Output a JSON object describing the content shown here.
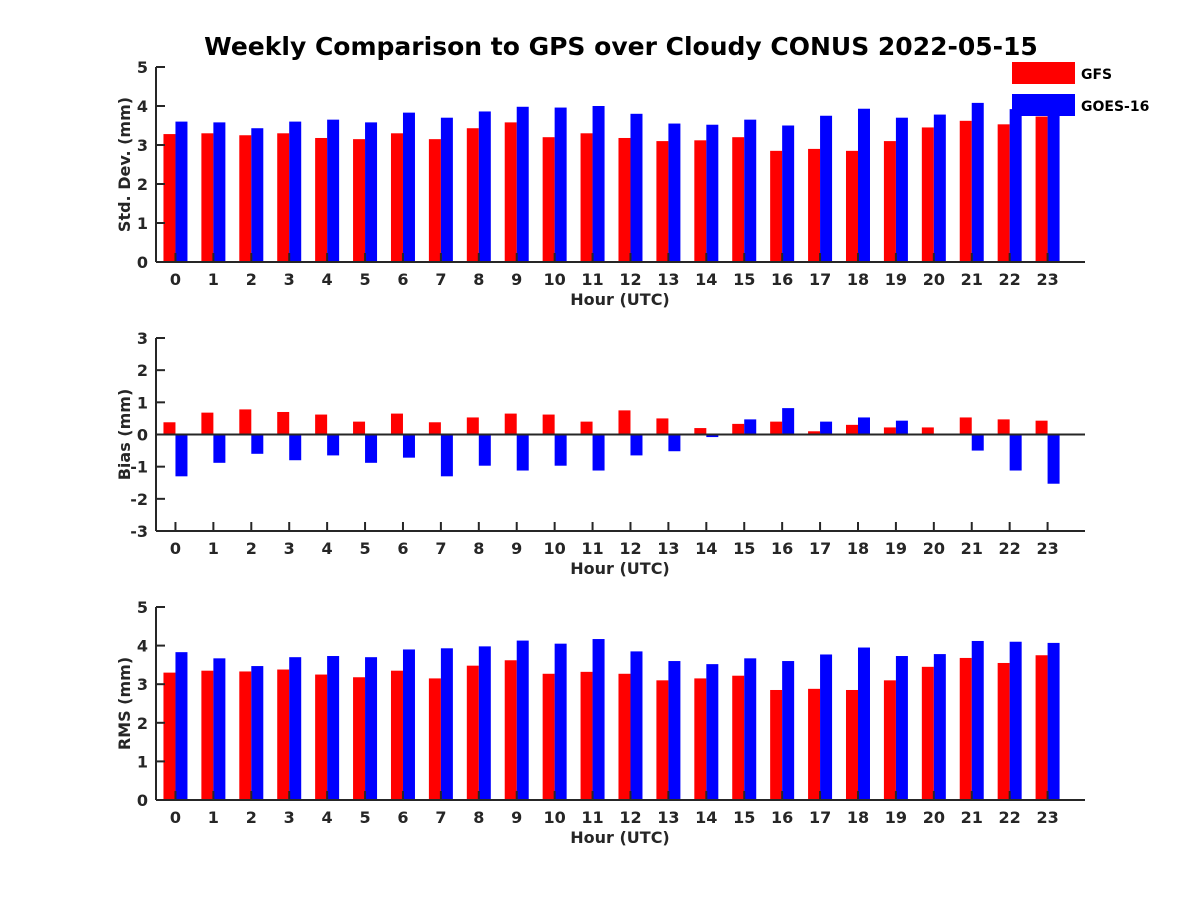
{
  "title": "Weekly Comparison to GPS over Cloudy CONUS 2022-05-15",
  "colors": {
    "GFS": "#ff0000",
    "GOES-16": "#0000ff",
    "axis": "#262626"
  },
  "legend": {
    "placement": "top-right",
    "entries": [
      "GFS",
      "GOES-16"
    ]
  },
  "chart_data": [
    {
      "type": "bar",
      "xlabel": "Hour (UTC)",
      "ylabel": "Std. Dev. (mm)",
      "ylim": [
        0,
        5
      ],
      "yticks": [
        0,
        1,
        2,
        3,
        4,
        5
      ],
      "grid": false,
      "categories": [
        "0",
        "1",
        "2",
        "3",
        "4",
        "5",
        "6",
        "7",
        "8",
        "9",
        "10",
        "11",
        "12",
        "13",
        "14",
        "15",
        "16",
        "17",
        "18",
        "19",
        "20",
        "21",
        "22",
        "23"
      ],
      "series": [
        {
          "name": "GFS",
          "values": [
            3.28,
            3.3,
            3.25,
            3.3,
            3.18,
            3.15,
            3.3,
            3.15,
            3.43,
            3.58,
            3.2,
            3.3,
            3.18,
            3.1,
            3.12,
            3.2,
            2.85,
            2.9,
            2.85,
            3.1,
            3.45,
            3.62,
            3.53,
            3.73
          ]
        },
        {
          "name": "GOES-16",
          "values": [
            3.6,
            3.58,
            3.43,
            3.6,
            3.65,
            3.58,
            3.83,
            3.7,
            3.86,
            3.98,
            3.96,
            4.0,
            3.8,
            3.55,
            3.52,
            3.65,
            3.5,
            3.75,
            3.93,
            3.7,
            3.78,
            4.08,
            3.92,
            3.9
          ]
        }
      ]
    },
    {
      "type": "bar",
      "xlabel": "Hour (UTC)",
      "ylabel": "Bias (mm)",
      "ylim": [
        -3,
        3
      ],
      "yticks": [
        -3,
        -2,
        -1,
        0,
        1,
        2,
        3
      ],
      "grid": false,
      "categories": [
        "0",
        "1",
        "2",
        "3",
        "4",
        "5",
        "6",
        "7",
        "8",
        "9",
        "10",
        "11",
        "12",
        "13",
        "14",
        "15",
        "16",
        "17",
        "18",
        "19",
        "20",
        "21",
        "22",
        "23"
      ],
      "series": [
        {
          "name": "GFS",
          "values": [
            0.38,
            0.68,
            0.78,
            0.7,
            0.62,
            0.4,
            0.65,
            0.38,
            0.53,
            0.65,
            0.62,
            0.4,
            0.75,
            0.5,
            0.2,
            0.33,
            0.4,
            0.1,
            0.3,
            0.22,
            0.22,
            0.53,
            0.47,
            0.43
          ]
        },
        {
          "name": "GOES-16",
          "values": [
            -1.3,
            -0.88,
            -0.6,
            -0.8,
            -0.65,
            -0.88,
            -0.72,
            -1.3,
            -0.97,
            -1.12,
            -0.97,
            -1.12,
            -0.65,
            -0.52,
            -0.08,
            0.47,
            0.82,
            0.4,
            0.53,
            0.43,
            0.03,
            -0.5,
            -1.12,
            -1.53
          ]
        }
      ]
    },
    {
      "type": "bar",
      "xlabel": "Hour (UTC)",
      "ylabel": "RMS (mm)",
      "ylim": [
        0,
        5
      ],
      "yticks": [
        0,
        1,
        2,
        3,
        4,
        5
      ],
      "grid": false,
      "categories": [
        "0",
        "1",
        "2",
        "3",
        "4",
        "5",
        "6",
        "7",
        "8",
        "9",
        "10",
        "11",
        "12",
        "13",
        "14",
        "15",
        "16",
        "17",
        "18",
        "19",
        "20",
        "21",
        "22",
        "23"
      ],
      "series": [
        {
          "name": "GFS",
          "values": [
            3.3,
            3.35,
            3.33,
            3.38,
            3.25,
            3.18,
            3.35,
            3.15,
            3.48,
            3.62,
            3.27,
            3.32,
            3.27,
            3.1,
            3.15,
            3.22,
            2.85,
            2.88,
            2.85,
            3.1,
            3.45,
            3.68,
            3.55,
            3.75
          ]
        },
        {
          "name": "GOES-16",
          "values": [
            3.83,
            3.67,
            3.47,
            3.7,
            3.73,
            3.7,
            3.9,
            3.93,
            3.98,
            4.13,
            4.05,
            4.17,
            3.85,
            3.6,
            3.52,
            3.67,
            3.6,
            3.77,
            3.95,
            3.73,
            3.78,
            4.12,
            4.1,
            4.07
          ]
        }
      ]
    }
  ]
}
